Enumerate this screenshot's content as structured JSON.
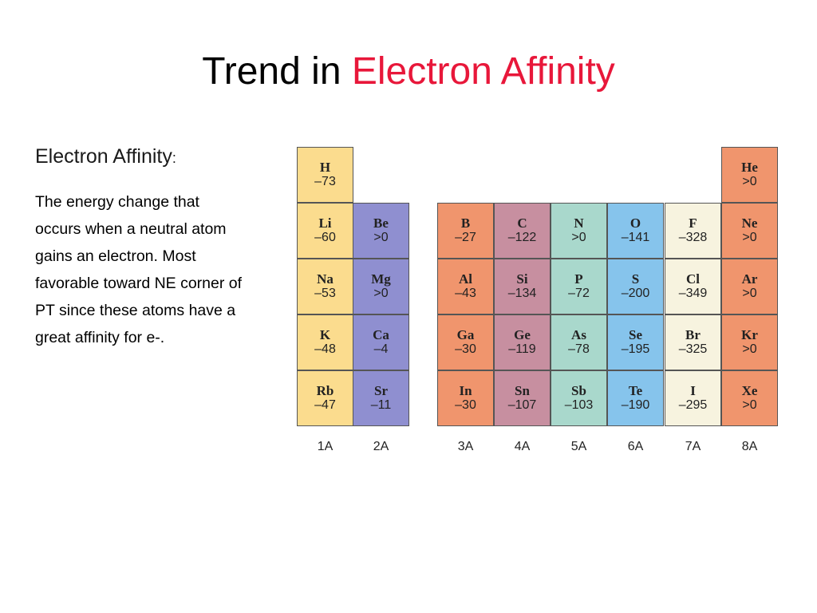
{
  "title": {
    "lead": "Trend in ",
    "highlight": "Electron Affinity"
  },
  "heading": {
    "term": "Electron Affinity",
    "colon": ":"
  },
  "body": "The energy change that occurs when a neutral atom gains an electron.  Most favorable toward NE corner of PT since these atoms have a great affinity for e-.",
  "groups": [
    {
      "label": "1A",
      "elements": [
        {
          "symbol": "H",
          "value": "–73"
        },
        {
          "symbol": "Li",
          "value": "–60"
        },
        {
          "symbol": "Na",
          "value": "–53"
        },
        {
          "symbol": "K",
          "value": "–48"
        },
        {
          "symbol": "Rb",
          "value": "–47"
        }
      ]
    },
    {
      "label": "2A",
      "elements": [
        {
          "symbol": "Be",
          "value": ">0"
        },
        {
          "symbol": "Mg",
          "value": ">0"
        },
        {
          "symbol": "Ca",
          "value": "–4"
        },
        {
          "symbol": "Sr",
          "value": "–11"
        }
      ]
    },
    {
      "label": "3A",
      "elements": [
        {
          "symbol": "B",
          "value": "–27"
        },
        {
          "symbol": "Al",
          "value": "–43"
        },
        {
          "symbol": "Ga",
          "value": "–30"
        },
        {
          "symbol": "In",
          "value": "–30"
        }
      ]
    },
    {
      "label": "4A",
      "elements": [
        {
          "symbol": "C",
          "value": "–122"
        },
        {
          "symbol": "Si",
          "value": "–134"
        },
        {
          "symbol": "Ge",
          "value": "–119"
        },
        {
          "symbol": "Sn",
          "value": "–107"
        }
      ]
    },
    {
      "label": "5A",
      "elements": [
        {
          "symbol": "N",
          "value": ">0"
        },
        {
          "symbol": "P",
          "value": "–72"
        },
        {
          "symbol": "As",
          "value": "–78"
        },
        {
          "symbol": "Sb",
          "value": "–103"
        }
      ]
    },
    {
      "label": "6A",
      "elements": [
        {
          "symbol": "O",
          "value": "–141"
        },
        {
          "symbol": "S",
          "value": "–200"
        },
        {
          "symbol": "Se",
          "value": "–195"
        },
        {
          "symbol": "Te",
          "value": "–190"
        }
      ]
    },
    {
      "label": "7A",
      "elements": [
        {
          "symbol": "F",
          "value": "–328"
        },
        {
          "symbol": "Cl",
          "value": "–349"
        },
        {
          "symbol": "Br",
          "value": "–325"
        },
        {
          "symbol": "I",
          "value": "–295"
        }
      ]
    },
    {
      "label": "8A",
      "elements": [
        {
          "symbol": "He",
          "value": ">0"
        },
        {
          "symbol": "Ne",
          "value": ">0"
        },
        {
          "symbol": "Ar",
          "value": ">0"
        },
        {
          "symbol": "Kr",
          "value": ">0"
        },
        {
          "symbol": "Xe",
          "value": ">0"
        }
      ]
    }
  ]
}
